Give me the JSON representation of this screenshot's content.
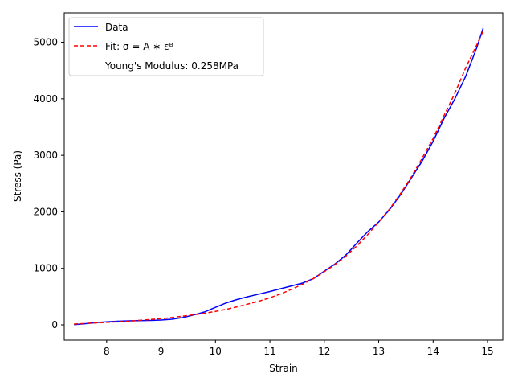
{
  "chart_data": {
    "type": "line",
    "title": "",
    "xlabel": "Strain",
    "ylabel": "Stress (Pa)",
    "xlim": [
      7.22,
      15.28
    ],
    "ylim": [
      -270,
      5520
    ],
    "xticks": [
      8,
      9,
      10,
      11,
      12,
      13,
      14,
      15
    ],
    "yticks": [
      0,
      1000,
      2000,
      3000,
      4000,
      5000
    ],
    "grid": false,
    "legend_position": "top-left",
    "series": [
      {
        "name": "Data",
        "style": "solid",
        "color": "#0000ff",
        "x": [
          7.4,
          7.6,
          7.8,
          8.0,
          8.2,
          8.4,
          8.6,
          8.8,
          9.0,
          9.2,
          9.4,
          9.6,
          9.8,
          10.0,
          10.2,
          10.4,
          10.6,
          10.8,
          11.0,
          11.2,
          11.4,
          11.6,
          11.8,
          12.0,
          12.2,
          12.4,
          12.6,
          12.8,
          13.0,
          13.2,
          13.4,
          13.6,
          13.8,
          14.0,
          14.2,
          14.4,
          14.6,
          14.8,
          14.92
        ],
        "y": [
          5,
          20,
          40,
          55,
          65,
          72,
          75,
          78,
          85,
          100,
          130,
          175,
          230,
          310,
          390,
          450,
          500,
          545,
          590,
          640,
          690,
          740,
          820,
          950,
          1080,
          1240,
          1450,
          1650,
          1820,
          2040,
          2300,
          2600,
          2900,
          3250,
          3650,
          4000,
          4400,
          4900,
          5250
        ]
      },
      {
        "name": "Fit: σ = A ∗ εᴮ",
        "style": "dashed",
        "color": "#ff0000",
        "x": [
          7.4,
          7.6,
          7.8,
          8.0,
          8.2,
          8.4,
          8.6,
          8.8,
          9.0,
          9.2,
          9.4,
          9.6,
          9.8,
          10.0,
          10.2,
          10.4,
          10.6,
          10.8,
          11.0,
          11.2,
          11.4,
          11.6,
          11.8,
          12.0,
          12.2,
          12.4,
          12.6,
          12.8,
          13.0,
          13.2,
          13.4,
          13.6,
          13.8,
          14.0,
          14.2,
          14.4,
          14.6,
          14.8,
          14.92
        ],
        "y": [
          15,
          25,
          35,
          45,
          55,
          65,
          80,
          95,
          110,
          130,
          155,
          180,
          205,
          240,
          275,
          320,
          370,
          420,
          480,
          550,
          630,
          720,
          820,
          940,
          1070,
          1220,
          1400,
          1600,
          1820,
          2050,
          2320,
          2620,
          2950,
          3300,
          3700,
          4100,
          4550,
          4950,
          5200
        ]
      }
    ],
    "legend": {
      "data_label": "Data",
      "fit_label": "Fit: σ = A ∗ εᴮ",
      "modulus_label": "Young's Modulus: 0.258MPa"
    }
  }
}
